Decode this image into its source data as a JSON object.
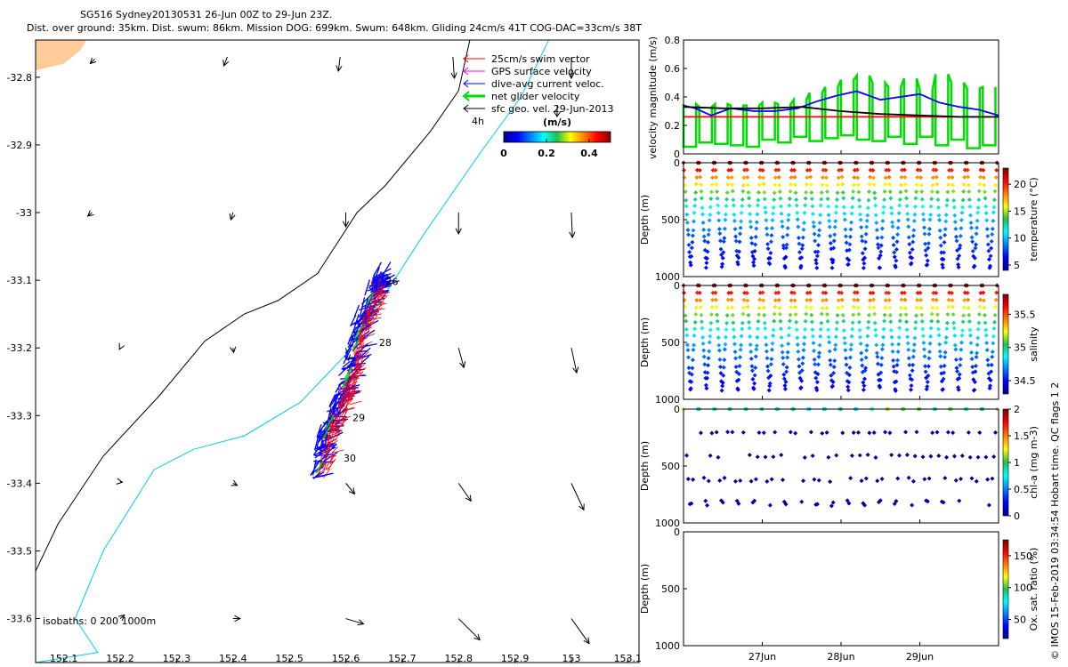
{
  "header": {
    "line1": "SG516 Sydney20130531 26-Jun 00Z to 29-Jun 23Z.",
    "line2": "Dist. over ground: 35km. Dist. swum: 86km. Mission DOG: 699km. Swum: 648km. Gliding 24cm/s 41T COG-DAC=33cm/s 38T"
  },
  "credit": "© IMOS 15-Feb-2019 03:34:54 Hobart time. QC flags 1  2",
  "colors": {
    "swim": "#ff0000",
    "gps": "#ff00ff",
    "dac": "#0000ff",
    "net": "#00dd00",
    "sfc": "#000000",
    "isobath200": "#000000",
    "isobath1000": "#00ccee",
    "land": "#ffcc99"
  },
  "chart_data": [
    {
      "type": "map",
      "title": "",
      "xlim": [
        152.05,
        153.12
      ],
      "ylim": [
        -33.665,
        -32.745
      ],
      "xticks": [
        152.1,
        152.2,
        152.3,
        152.4,
        152.5,
        152.6,
        152.7,
        152.8,
        152.9,
        153,
        153.1
      ],
      "xtick_labels": [
        "152.1",
        "152.2",
        "152.3",
        "152.4",
        "152.5",
        "152.6",
        "152.7",
        "152.8",
        "152.9",
        "153",
        "153.1"
      ],
      "yticks": [
        -32.8,
        -32.9,
        -33.0,
        -33.1,
        -33.2,
        -33.3,
        -33.4,
        -33.5,
        -33.6
      ],
      "ytick_labels": [
        "-32.8",
        "-32.9",
        "-33",
        "-33.1",
        "-33.2",
        "-33.3",
        "-33.4",
        "-33.5",
        "-33.6"
      ],
      "legend": {
        "placement": "top-right",
        "entries": [
          "25cm/s swim vector",
          "GPS surface velocity",
          "dive-avg current veloc.",
          "net glider velocity",
          "sfc geo. vel. 29-Jun-2013"
        ],
        "extra_label": "4h"
      },
      "colorbar": {
        "label": "(m/s)",
        "ticks": [
          "0",
          "0.2",
          "0.4"
        ],
        "range": [
          0,
          0.5
        ]
      },
      "isobath_note": "isobaths: 0   200  1000m",
      "coast_200m": [
        [
          152.05,
          -33.53
        ],
        [
          152.09,
          -33.46
        ],
        [
          152.17,
          -33.36
        ],
        [
          152.27,
          -33.27
        ],
        [
          152.35,
          -33.19
        ],
        [
          152.42,
          -33.15
        ],
        [
          152.48,
          -33.13
        ],
        [
          152.55,
          -33.09
        ],
        [
          152.62,
          -33.0
        ],
        [
          152.67,
          -32.96
        ],
        [
          152.75,
          -32.88
        ],
        [
          152.8,
          -32.82
        ],
        [
          152.82,
          -32.745
        ]
      ],
      "isobath_1000m": [
        [
          152.05,
          -33.665
        ],
        [
          152.16,
          -33.65
        ],
        [
          152.12,
          -33.6
        ],
        [
          152.17,
          -33.5
        ],
        [
          152.26,
          -33.38
        ],
        [
          152.33,
          -33.35
        ],
        [
          152.42,
          -33.33
        ],
        [
          152.52,
          -33.28
        ],
        [
          152.6,
          -33.21
        ],
        [
          152.67,
          -33.12
        ],
        [
          152.74,
          -33.03
        ],
        [
          152.79,
          -32.97
        ],
        [
          152.84,
          -32.91
        ],
        [
          152.91,
          -32.83
        ],
        [
          152.96,
          -32.745
        ]
      ],
      "land": [
        [
          152.05,
          -32.745
        ],
        [
          152.14,
          -32.745
        ],
        [
          152.13,
          -32.76
        ],
        [
          152.1,
          -32.78
        ],
        [
          152.05,
          -32.79
        ]
      ],
      "track_labels": [
        {
          "text": "26",
          "lon": 152.671,
          "lat": -33.107
        },
        {
          "text": "28",
          "lon": 152.659,
          "lat": -33.197
        },
        {
          "text": "29",
          "lon": 152.612,
          "lat": -33.308
        },
        {
          "text": "30",
          "lon": 152.596,
          "lat": -33.368
        }
      ],
      "sfc_geo_vectors": [
        {
          "lon": 152.155,
          "lat": -32.773,
          "u": -0.013,
          "v": -0.013
        },
        {
          "lon": 152.39,
          "lat": -32.77,
          "u": -0.01,
          "v": -0.025
        },
        {
          "lon": 152.59,
          "lat": -32.77,
          "u": -0.005,
          "v": -0.04
        },
        {
          "lon": 152.79,
          "lat": -32.77,
          "u": 0.004,
          "v": -0.06
        },
        {
          "lon": 153.0,
          "lat": -32.77,
          "u": 0.0,
          "v": -0.06
        },
        {
          "lon": 152.15,
          "lat": -33.0,
          "u": -0.012,
          "v": -0.01
        },
        {
          "lon": 152.4,
          "lat": -33.0,
          "u": -0.006,
          "v": -0.02
        },
        {
          "lon": 152.6,
          "lat": -33.0,
          "u": 0.0,
          "v": -0.04
        },
        {
          "lon": 152.8,
          "lat": -33.0,
          "u": 0.0,
          "v": -0.06
        },
        {
          "lon": 153.0,
          "lat": -33.0,
          "u": 0.003,
          "v": -0.07
        },
        {
          "lon": 152.2,
          "lat": -33.2,
          "u": -0.002,
          "v": -0.004
        },
        {
          "lon": 152.4,
          "lat": -33.2,
          "u": 0.002,
          "v": -0.013
        },
        {
          "lon": 152.6,
          "lat": -33.2,
          "u": 0.008,
          "v": -0.035
        },
        {
          "lon": 152.8,
          "lat": -33.2,
          "u": 0.015,
          "v": -0.055
        },
        {
          "lon": 153.0,
          "lat": -33.2,
          "u": 0.015,
          "v": -0.07
        },
        {
          "lon": 152.2,
          "lat": -33.398,
          "u": 0.006,
          "v": -0.001
        },
        {
          "lon": 152.4,
          "lat": -33.4,
          "u": 0.012,
          "v": -0.006
        },
        {
          "lon": 152.6,
          "lat": -33.4,
          "u": 0.025,
          "v": -0.03
        },
        {
          "lon": 152.8,
          "lat": -33.4,
          "u": 0.035,
          "v": -0.05
        },
        {
          "lon": 153.0,
          "lat": -33.4,
          "u": 0.035,
          "v": -0.075
        },
        {
          "lon": 152.2,
          "lat": -33.6,
          "u": 0.012,
          "v": 0.01
        },
        {
          "lon": 152.4,
          "lat": -33.6,
          "u": 0.02,
          "v": 0.0
        },
        {
          "lon": 152.6,
          "lat": -33.6,
          "u": 0.05,
          "v": -0.015
        },
        {
          "lon": 152.8,
          "lat": -33.6,
          "u": 0.06,
          "v": -0.06
        },
        {
          "lon": 153.0,
          "lat": -33.6,
          "u": 0.05,
          "v": -0.07
        }
      ]
    },
    {
      "type": "line",
      "ylabel": "velocity magnitude (m/s)",
      "xlim": [
        26.0,
        30.0
      ],
      "ylim": [
        0,
        0.8
      ],
      "yticks": [
        0,
        0.2,
        0.4,
        0.6,
        0.8
      ],
      "ytick_labels": [
        "0",
        "0.2",
        "0.4",
        "0.6",
        "0.8"
      ],
      "series": [
        {
          "role": "swim",
          "color": "#ff0000",
          "x": [
            26.0,
            30.0
          ],
          "values": [
            0.26,
            0.26
          ]
        },
        {
          "role": "dac",
          "color": "#0000ff",
          "x": [
            26.0,
            26.15,
            26.35,
            26.6,
            26.9,
            27.15,
            27.45,
            27.7,
            27.95,
            28.2,
            28.5,
            28.75,
            29.0,
            29.25,
            29.5,
            29.75,
            30.0
          ],
          "values": [
            0.34,
            0.32,
            0.27,
            0.32,
            0.3,
            0.3,
            0.32,
            0.37,
            0.41,
            0.44,
            0.38,
            0.4,
            0.42,
            0.36,
            0.33,
            0.31,
            0.27
          ]
        },
        {
          "role": "sfc_geo",
          "color": "#000000",
          "x": [
            26.0,
            26.5,
            27.0,
            27.5,
            28.0,
            28.5,
            29.0,
            29.5,
            30.0
          ],
          "values": [
            0.33,
            0.32,
            0.32,
            0.33,
            0.3,
            0.28,
            0.27,
            0.26,
            0.26
          ]
        }
      ],
      "net_glider_velocity": {
        "color": "#00dd00",
        "note": "two samples per dive, high then low",
        "dive_times": [
          26.0,
          26.2,
          26.4,
          26.6,
          26.8,
          27.0,
          27.2,
          27.4,
          27.6,
          27.8,
          28.0,
          28.2,
          28.4,
          28.6,
          28.8,
          29.0,
          29.2,
          29.4,
          29.6,
          29.8
        ],
        "high": [
          0.35,
          0.33,
          0.35,
          0.34,
          0.34,
          0.36,
          0.35,
          0.38,
          0.43,
          0.47,
          0.52,
          0.55,
          0.5,
          0.47,
          0.53,
          0.45,
          0.56,
          0.5,
          0.46,
          0.47
        ],
        "low": [
          0.05,
          0.08,
          0.07,
          0.06,
          0.05,
          0.1,
          0.08,
          0.12,
          0.09,
          0.11,
          0.13,
          0.1,
          0.09,
          0.12,
          0.07,
          0.12,
          0.06,
          0.1,
          0.04,
          0.06
        ]
      }
    },
    {
      "type": "scatter",
      "name": "temperature",
      "ylabel": "Depth (m)",
      "ylim": [
        1000,
        0
      ],
      "yticks": [
        0,
        500,
        1000
      ],
      "ytick_labels": [
        "0",
        "500",
        "1000"
      ],
      "colorbar": {
        "label": "temperature (°C)",
        "ticks": [
          "5",
          "10",
          "15",
          "20"
        ],
        "range": [
          4,
          23
        ]
      },
      "profiles": 20,
      "points_per_profile": 30,
      "max_depth": 960,
      "surface_value": 23,
      "bottom_value": 4,
      "layer_value": 15
    },
    {
      "type": "scatter",
      "name": "salinity",
      "ylabel": "Depth (m)",
      "ylim": [
        1000,
        0
      ],
      "yticks": [
        0,
        500,
        1000
      ],
      "ytick_labels": [
        "0",
        "500",
        "1000"
      ],
      "colorbar": {
        "label": "salinity",
        "ticks": [
          "34.5",
          "35",
          "35.5"
        ],
        "range": [
          34.3,
          35.8
        ]
      },
      "profiles": 20,
      "points_per_profile": 30,
      "max_depth": 960,
      "surface_value": 35.8,
      "bottom_value": 34.3,
      "layer_value": 35.1
    },
    {
      "type": "scatter",
      "name": "chl-a",
      "ylabel": "Depth (m)",
      "ylim": [
        1000,
        0
      ],
      "yticks": [
        0,
        500,
        1000
      ],
      "ytick_labels": [
        "0",
        "500",
        "1000"
      ],
      "colorbar": {
        "label": "chl-a (mg m-3)",
        "ticks": [
          "0",
          "0.5",
          "1",
          "1.5",
          "2"
        ],
        "range": [
          0,
          2
        ]
      },
      "profiles": 20,
      "points_per_profile": 10,
      "max_depth": 960,
      "surface_value": 0.6,
      "bottom_value": 0.0
    },
    {
      "type": "scatter",
      "name": "oxygen",
      "ylabel": "Depth (m)",
      "ylim": [
        1000,
        0
      ],
      "yticks": [
        0,
        500,
        1000
      ],
      "ytick_labels": [
        "0",
        "500",
        "1000"
      ],
      "colorbar": {
        "label": "Ox. sat. ratio (%)",
        "ticks": [
          "50",
          "100",
          "150"
        ],
        "range": [
          20,
          175
        ]
      },
      "points": []
    },
    {
      "type": "time_axis",
      "xlim": [
        26.0,
        30.0
      ],
      "xticks": [
        27.0,
        28.0,
        29.0
      ],
      "xtick_labels": [
        "27Jun",
        "28Jun",
        "29Jun"
      ]
    }
  ]
}
